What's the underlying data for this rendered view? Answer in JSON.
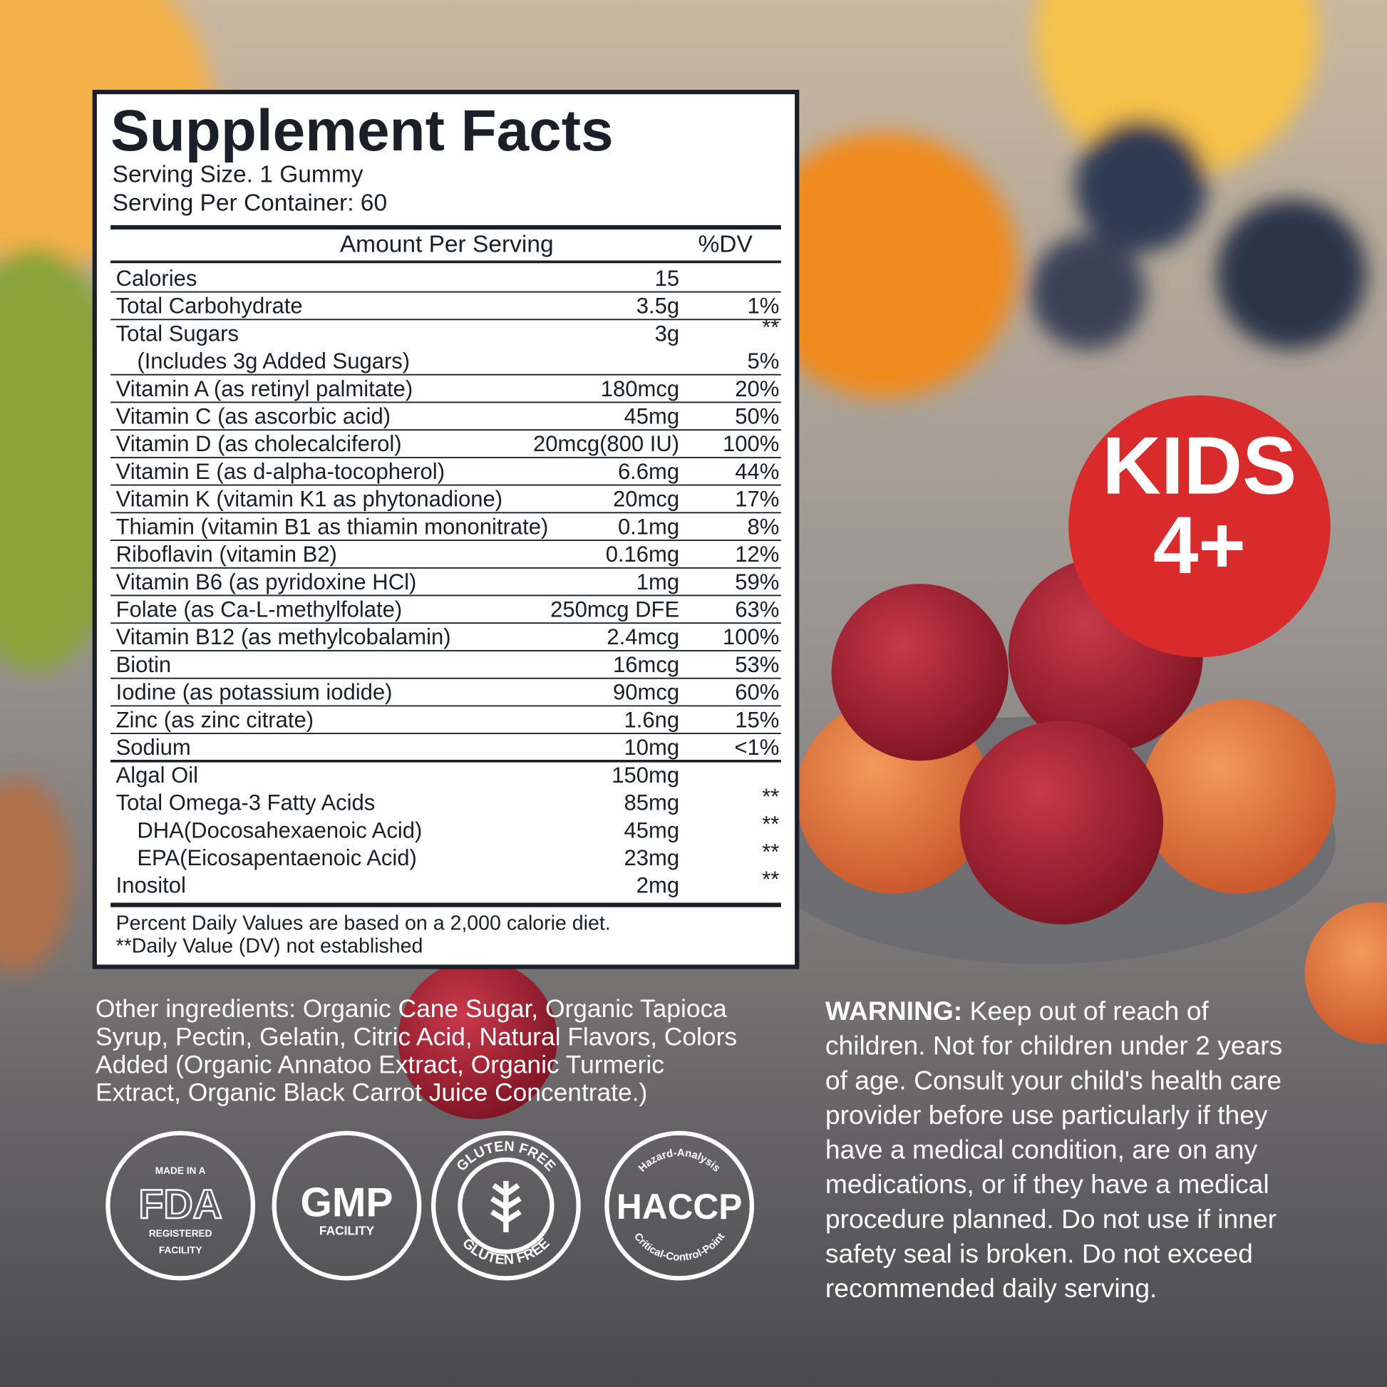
{
  "panel": {
    "title": "Supplement Facts",
    "serving_size": "Serving Size. 1 Gummy",
    "servings": "Serving Per Container: 60",
    "header_amount": "Amount Per Serving",
    "header_dv": "%DV",
    "rows": [
      {
        "name": "Calories",
        "amount": "15"
      },
      {
        "name": "Total Carbohydrate",
        "amount": "3.5g",
        "dv": "1%"
      },
      {
        "name": "Total Sugars",
        "amount": "3g",
        "dv": "**"
      },
      {
        "name": "(Includes 3g Added Sugars)",
        "dv": "5%"
      },
      {
        "name": "Vitamin A (as retinyl palmitate)",
        "amount": "180mcg",
        "dv": "20%"
      },
      {
        "name": "Vitamin C (as ascorbic acid)",
        "amount": "45mg",
        "dv": "50%"
      },
      {
        "name": "Vitamin D (as cholecalciferol)",
        "amount": "20mcg(800 IU)",
        "dv": "100%"
      },
      {
        "name": "Vitamin E (as d-alpha-tocopherol)",
        "amount": "6.6mg",
        "dv": "44%"
      },
      {
        "name": "Vitamin K (vitamin K1 as phytonadione)",
        "amount": "20mcg",
        "dv": "17%"
      },
      {
        "name": "Thiamin (vitamin B1 as thiamin mononitrate)",
        "amount": "0.1mg",
        "dv": "8%"
      },
      {
        "name": "Riboflavin (vitamin B2)",
        "amount": "0.16mg",
        "dv": "12%"
      },
      {
        "name": "Vitamin B6 (as pyridoxine HCl)",
        "amount": "1mg",
        "dv": "59%"
      },
      {
        "name": "Folate (as Ca-L-methylfolate)",
        "amount": "250mcg DFE",
        "dv": "63%"
      },
      {
        "name": "Vitamin B12 (as methylcobalamin)",
        "amount": "2.4mcg",
        "dv": "100%"
      },
      {
        "name": "Biotin",
        "amount": "16mcg",
        "dv": "53%"
      },
      {
        "name": "Iodine (as potassium iodide)",
        "amount": "90mcg",
        "dv": "60%"
      },
      {
        "name": "Zinc (as zinc citrate)",
        "amount": "1.6ng",
        "dv": "15%"
      },
      {
        "name": "Sodium",
        "amount": "10mg",
        "dv": "<1%"
      },
      {
        "name": "Algal Oil",
        "amount": "150mg"
      },
      {
        "name": "Total Omega-3 Fatty Acids",
        "amount": "85mg",
        "dv": "**"
      },
      {
        "name": "DHA(Docosahexaenoic Acid)",
        "amount": "45mg",
        "dv": "**"
      },
      {
        "name": "EPA(Eicosapentaenoic Acid)",
        "amount": "23mg",
        "dv": "**"
      },
      {
        "name": "Inositol",
        "amount": "2mg",
        "dv": "**"
      }
    ],
    "footnotes": [
      "Percent Daily Values are based on a 2,000 calorie diet.",
      "**Daily Value (DV) not established"
    ]
  },
  "badge": {
    "line1": "KIDS",
    "line2": "4+"
  },
  "other_ingredients": [
    "Other ingredients: Organic Cane Sugar, Organic Tapioca",
    "Syrup, Pectin, Gelatin, Citric Acid, Natural Flavors, Colors",
    "Added (Organic Annatoo Extract, Organic Turmeric",
    "Extract, Organic Black Carrot Juice Concentrate.)"
  ],
  "warning": {
    "label": "WARNING:",
    "lines": [
      " Keep out of reach of",
      "children. Not for children under 2 years",
      "of age. Consult your child's health care",
      "provider before use particularly if they",
      "have a medical condition, are on any",
      "medications, or if they have a medical",
      "procedure planned. Do not use if inner",
      "safety seal is broken. Do not exceed",
      "recommended daily serving."
    ]
  },
  "certifications": {
    "fda": {
      "top": "MADE IN A",
      "main": "FDA",
      "bottom1": "REGISTERED",
      "bottom2": "FACILITY"
    },
    "gmp": {
      "main": "GMP",
      "bottom": "FACILITY"
    },
    "gluten": {
      "top": "GLUTEN FREE",
      "bottom": "GLUTEN FREE"
    },
    "haccp": {
      "top": "Hazard-Analysis",
      "main": "HACCP",
      "bottom": "Critical-Control-Point"
    }
  }
}
